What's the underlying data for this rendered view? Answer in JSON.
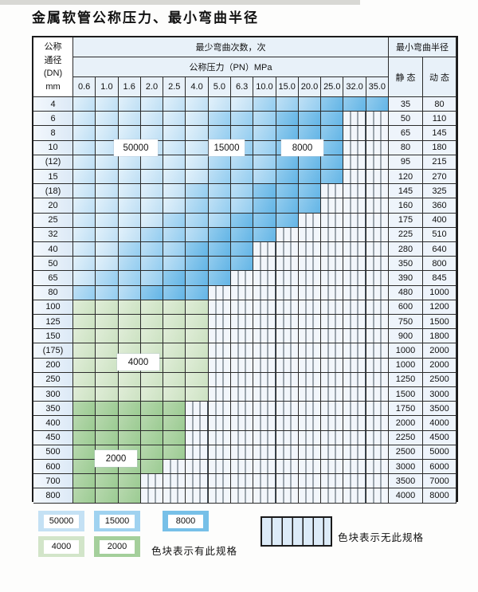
{
  "title": "金属软管公称压力、最小弯曲半径",
  "table": {
    "dn_header": [
      "公称",
      "通径",
      "(DN)",
      "mm"
    ],
    "cycles_header": "最少弯曲次数，次",
    "pn_header": "公称压力（PN）MPa",
    "radius_header": "最小弯曲半径",
    "static_header": "静 态",
    "dynamic_header": "动 态",
    "pressures": [
      "0.6",
      "1.0",
      "1.6",
      "2.0",
      "2.5",
      "4.0",
      "5.0",
      "6.3",
      "10.0",
      "15.0",
      "20.0",
      "25.0",
      "32.0",
      "35.0"
    ],
    "rows": [
      {
        "dn": "4",
        "through": "35.0",
        "static": "35",
        "dynamic": "80"
      },
      {
        "dn": "6",
        "through": "25.0",
        "static": "50",
        "dynamic": "110"
      },
      {
        "dn": "8",
        "through": "25.0",
        "static": "65",
        "dynamic": "145"
      },
      {
        "dn": "10",
        "through": "25.0",
        "static": "80",
        "dynamic": "180"
      },
      {
        "dn": "(12)",
        "through": "25.0",
        "static": "95",
        "dynamic": "215"
      },
      {
        "dn": "15",
        "through": "25.0",
        "static": "120",
        "dynamic": "270"
      },
      {
        "dn": "(18)",
        "through": "20.0",
        "static": "145",
        "dynamic": "325"
      },
      {
        "dn": "20",
        "through": "20.0",
        "static": "160",
        "dynamic": "360"
      },
      {
        "dn": "25",
        "through": "15.0",
        "static": "175",
        "dynamic": "400"
      },
      {
        "dn": "32",
        "through": "10.0",
        "static": "225",
        "dynamic": "510"
      },
      {
        "dn": "40",
        "through": "6.3",
        "static": "280",
        "dynamic": "640"
      },
      {
        "dn": "50",
        "through": "6.3",
        "static": "350",
        "dynamic": "800"
      },
      {
        "dn": "65",
        "through": "5.0",
        "static": "390",
        "dynamic": "845"
      },
      {
        "dn": "80",
        "through": "4.0",
        "static": "480",
        "dynamic": "1000"
      },
      {
        "dn": "100",
        "through": "4.0",
        "cycles": "4000",
        "static": "600",
        "dynamic": "1200"
      },
      {
        "dn": "125",
        "through": "4.0",
        "cycles": "4000",
        "static": "750",
        "dynamic": "1500"
      },
      {
        "dn": "150",
        "through": "4.0",
        "cycles": "4000",
        "static": "900",
        "dynamic": "1800"
      },
      {
        "dn": "(175)",
        "through": "4.0",
        "cycles": "4000",
        "static": "1000",
        "dynamic": "2000"
      },
      {
        "dn": "200",
        "through": "4.0",
        "cycles": "4000",
        "static": "1000",
        "dynamic": "2000"
      },
      {
        "dn": "250",
        "through": "4.0",
        "cycles": "4000",
        "static": "1250",
        "dynamic": "2500"
      },
      {
        "dn": "300",
        "through": "4.0",
        "cycles": "4000",
        "static": "1500",
        "dynamic": "3000"
      },
      {
        "dn": "350",
        "through": "2.5",
        "cycles": "2000",
        "static": "1750",
        "dynamic": "3500"
      },
      {
        "dn": "400",
        "through": "2.5",
        "cycles": "2000",
        "static": "2000",
        "dynamic": "4000"
      },
      {
        "dn": "450",
        "through": "2.5",
        "cycles": "2000",
        "static": "2250",
        "dynamic": "4500"
      },
      {
        "dn": "500",
        "through": "2.5",
        "cycles": "2000",
        "static": "2500",
        "dynamic": "5000"
      },
      {
        "dn": "600",
        "through": "2.0",
        "cycles": "2000",
        "static": "3000",
        "dynamic": "6000"
      },
      {
        "dn": "700",
        "through": "1.6",
        "cycles": "2000",
        "static": "3500",
        "dynamic": "7000"
      },
      {
        "dn": "800",
        "through": "1.6",
        "cycles": "2000",
        "static": "4000",
        "dynamic": "8000"
      }
    ]
  },
  "zone_labels": {
    "b50000": "50000",
    "b15000": "15000",
    "b8000": "8000",
    "g4000": "4000",
    "g2000": "2000"
  },
  "legend": {
    "items": [
      {
        "label": "50000",
        "color": "#c4e1f4"
      },
      {
        "label": "15000",
        "color": "#9fd2f0"
      },
      {
        "label": "8000",
        "color": "#77c0e8"
      },
      {
        "label": "4000",
        "color": "#d2e5c9"
      },
      {
        "label": "2000",
        "color": "#a4cf9b"
      }
    ],
    "has_spec_text": "色块表示有此规格",
    "no_spec_text": "色块表示无此规格"
  },
  "colors": {
    "blue_light": "#cfe6f6",
    "blue_mid": "#a9d6f2",
    "blue_dark": "#7bc1ea",
    "green_light": "#d6e7ce",
    "green_dark": "#a9d1a0",
    "hatch_bg": "#f2f6fb",
    "hatch_line": "#44525e",
    "header_bg": "#e8f1f9",
    "grid_line": "#2b2b2b"
  }
}
